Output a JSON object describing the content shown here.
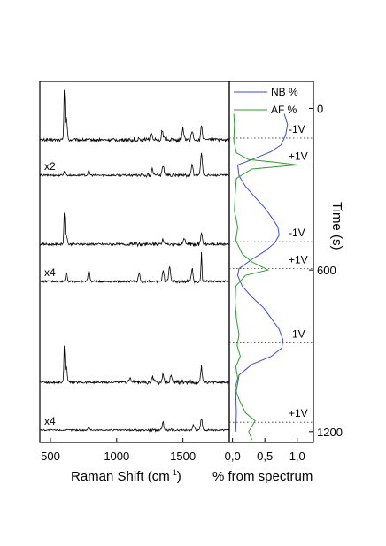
{
  "chart_data": [
    {
      "type": "line",
      "description_free": true,
      "xlabel": "Raman Shift (cm",
      "xlabel_sup": "-1",
      "xlabel_close": ")",
      "xlim": [
        420,
        1850
      ],
      "xticks": [
        "500",
        "1000",
        "1500"
      ],
      "xtick_values": [
        500,
        1000,
        1500
      ],
      "yticks_visible": false,
      "spectra": [
        {
          "label": "",
          "peaks": [
            [
              605,
              1.0
            ],
            [
              620,
              0.45
            ],
            [
              1260,
              0.12
            ],
            [
              1345,
              0.18
            ],
            [
              1500,
              0.22
            ],
            [
              1570,
              0.16
            ],
            [
              1640,
              0.3
            ]
          ]
        },
        {
          "label": "x2",
          "peaks": [
            [
              605,
              0.1
            ],
            [
              790,
              0.12
            ],
            [
              1270,
              0.18
            ],
            [
              1350,
              0.28
            ],
            [
              1570,
              0.3
            ],
            [
              1640,
              0.65
            ]
          ]
        },
        {
          "label": "",
          "peaks": [
            [
              605,
              0.85
            ],
            [
              620,
              0.25
            ],
            [
              1350,
              0.12
            ],
            [
              1510,
              0.16
            ],
            [
              1640,
              0.3
            ]
          ]
        },
        {
          "label": "x4",
          "peaks": [
            [
              620,
              0.3
            ],
            [
              790,
              0.35
            ],
            [
              1170,
              0.25
            ],
            [
              1350,
              0.35
            ],
            [
              1400,
              0.45
            ],
            [
              1570,
              0.4
            ],
            [
              1640,
              0.9
            ]
          ]
        },
        {
          "label": "",
          "peaks": [
            [
              605,
              0.85
            ],
            [
              620,
              0.4
            ],
            [
              1100,
              0.12
            ],
            [
              1270,
              0.15
            ],
            [
              1350,
              0.2
            ],
            [
              1410,
              0.18
            ],
            [
              1640,
              0.35
            ]
          ]
        },
        {
          "label": "x4",
          "peaks": [
            [
              790,
              0.12
            ],
            [
              1350,
              0.3
            ],
            [
              1580,
              0.22
            ],
            [
              1640,
              0.45
            ]
          ]
        }
      ]
    },
    {
      "type": "line",
      "xlabel": "% from spectrum",
      "ylabel": "Time (s)",
      "xlim": [
        -0.05,
        1.25
      ],
      "ylim": [
        -100,
        1240
      ],
      "xticks": [
        "0,0",
        "0,5",
        "1,0"
      ],
      "xtick_values": [
        0,
        0.5,
        1
      ],
      "yticks": [
        "0",
        "600",
        "1200"
      ],
      "ytick_values": [
        0,
        600,
        1200
      ],
      "legend": "top-right",
      "series": [
        {
          "name": "NB %",
          "color": "#3a4bd6",
          "x": [
            0.8,
            0.85,
            0.82,
            0.75,
            0.6,
            0.35,
            0.08,
            0.1,
            0.2,
            0.35,
            0.5,
            0.62,
            0.7,
            0.72,
            0.65,
            0.5,
            0.3,
            0.1,
            0.08,
            0.15,
            0.3,
            0.48,
            0.6,
            0.72,
            0.78,
            0.76,
            0.6,
            0.3,
            0.1,
            0.05,
            0.06,
            0.05
          ],
          "y": [
            20,
            60,
            100,
            135,
            160,
            185,
            210,
            250,
            290,
            330,
            370,
            410,
            440,
            470,
            500,
            530,
            560,
            595,
            620,
            660,
            700,
            740,
            780,
            820,
            860,
            890,
            920,
            950,
            990,
            1060,
            1130,
            1200
          ]
        },
        {
          "name": "AF %",
          "color": "#2f9a2f",
          "x": [
            0.02,
            0.03,
            0.02,
            0.06,
            0.25,
            0.65,
            1.0,
            0.3,
            0.06,
            0.04,
            0.03,
            0.08,
            0.05,
            0.15,
            0.3,
            0.55,
            0.2,
            0.05,
            0.04,
            0.06,
            0.1,
            0.07,
            0.12,
            0.05,
            0.08,
            0.04,
            0.1,
            0.2,
            0.35,
            0.25,
            0.3
          ],
          "y": [
            20,
            60,
            120,
            165,
            190,
            200,
            210,
            225,
            260,
            320,
            380,
            440,
            490,
            540,
            570,
            600,
            620,
            660,
            720,
            780,
            840,
            880,
            920,
            960,
            1000,
            1040,
            1080,
            1130,
            1160,
            1200,
            1230
          ]
        }
      ],
      "annotations": [
        {
          "text": "-1V",
          "y": 110
        },
        {
          "text": "+1V",
          "y": 210
        },
        {
          "text": "-1V",
          "y": 495
        },
        {
          "text": "+1V",
          "y": 595
        },
        {
          "text": "-1V",
          "y": 870
        },
        {
          "text": "+1V",
          "y": 1165
        }
      ]
    }
  ]
}
